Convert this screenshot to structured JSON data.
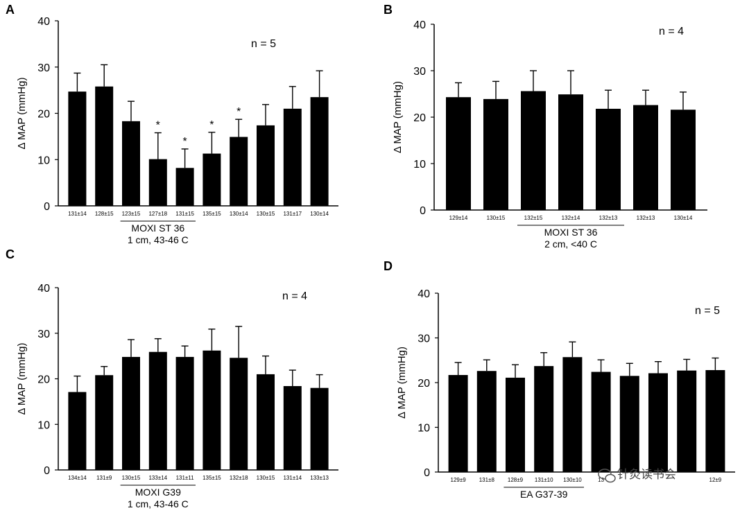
{
  "chart_data": [
    {
      "type": "bar",
      "panel": "A",
      "ylabel": "Δ MAP (mmHg)",
      "ylim": [
        0,
        40
      ],
      "yticks": [
        "0",
        "10",
        "20",
        "30",
        "40"
      ],
      "n_label": "n = 5",
      "categories": [
        "131±14",
        "128±15",
        "123±15",
        "127±18",
        "131±15",
        "135±15",
        "130±14",
        "130±15",
        "131±17",
        "130±14"
      ],
      "values": [
        24.7,
        25.8,
        18.3,
        10.1,
        8.2,
        11.3,
        14.9,
        17.4,
        21.0,
        23.5
      ],
      "errors": [
        4.0,
        4.7,
        4.3,
        5.7,
        4.1,
        4.6,
        3.8,
        4.5,
        4.8,
        5.7
      ],
      "significant": [
        false,
        false,
        false,
        true,
        true,
        true,
        true,
        false,
        false,
        false
      ],
      "significance_marker": "*",
      "group_label_line1": "MOXI ST 36",
      "group_label_line2": "1 cm, 43-46 C",
      "group_range": [
        2,
        4
      ]
    },
    {
      "type": "bar",
      "panel": "B",
      "ylabel": "Δ MAP (mmHg)",
      "ylim": [
        0,
        40
      ],
      "yticks": [
        "0",
        "10",
        "20",
        "30",
        "40"
      ],
      "n_label": "n  =  4",
      "categories": [
        "129±14",
        "130±15",
        "132±15",
        "132±14",
        "132±13",
        "132±13",
        "130±14"
      ],
      "values": [
        24.3,
        23.9,
        25.6,
        24.9,
        21.8,
        22.6,
        21.6
      ],
      "errors": [
        3.1,
        3.8,
        4.4,
        5.1,
        4.0,
        3.2,
        3.8
      ],
      "significant": [
        false,
        false,
        false,
        false,
        false,
        false,
        false
      ],
      "significance_marker": "*",
      "group_label_line1": "MOXI ST 36",
      "group_label_line2": "2 cm, <40 C",
      "group_range": [
        2,
        4
      ]
    },
    {
      "type": "bar",
      "panel": "C",
      "ylabel": "Δ MAP (mmHg)",
      "ylim": [
        0,
        40
      ],
      "yticks": [
        "0",
        "10",
        "20",
        "30",
        "40"
      ],
      "n_label": "n  = 4",
      "categories": [
        "134±14",
        "131±9",
        "130±15",
        "133±14",
        "131±11",
        "135±15",
        "132±18",
        "130±15",
        "131±14",
        "133±13"
      ],
      "values": [
        17.1,
        20.8,
        24.8,
        25.9,
        24.8,
        26.2,
        24.6,
        21.0,
        18.4,
        18.0
      ],
      "errors": [
        3.5,
        1.9,
        3.8,
        2.9,
        2.4,
        4.7,
        6.9,
        4.0,
        3.5,
        2.9
      ],
      "significant": [
        false,
        false,
        false,
        false,
        false,
        false,
        false,
        false,
        false,
        false
      ],
      "significance_marker": "*",
      "group_label_line1": "MOXI G39",
      "group_label_line2": "1 cm, 43-46 C",
      "group_range": [
        2,
        4
      ]
    },
    {
      "type": "bar",
      "panel": "D",
      "ylabel": "Δ MAP (mmHg)",
      "ylim": [
        0,
        40
      ],
      "yticks": [
        "0",
        "10",
        "20",
        "30",
        "40"
      ],
      "n_label": "n = 5",
      "categories": [
        "129±9",
        "131±8",
        "128±9",
        "131±10",
        "130±10",
        "13",
        "",
        "",
        "",
        "12±9"
      ],
      "values": [
        21.7,
        22.6,
        21.1,
        23.7,
        25.7,
        22.4,
        21.5,
        22.1,
        22.7,
        22.8
      ],
      "errors": [
        2.8,
        2.5,
        2.9,
        3.0,
        3.4,
        2.7,
        2.8,
        2.6,
        2.5,
        2.7
      ],
      "significant": [
        false,
        false,
        false,
        false,
        false,
        false,
        false,
        false,
        false,
        false
      ],
      "significance_marker": "*",
      "group_label_line1": "EA G37-39",
      "group_label_line2": "",
      "group_range": [
        2,
        4
      ]
    }
  ],
  "watermark": {
    "text": "针灸读书会",
    "icon": "wechat-icon"
  },
  "colors": {
    "bar": "#000000",
    "axis": "#000000",
    "background": "#ffffff"
  }
}
